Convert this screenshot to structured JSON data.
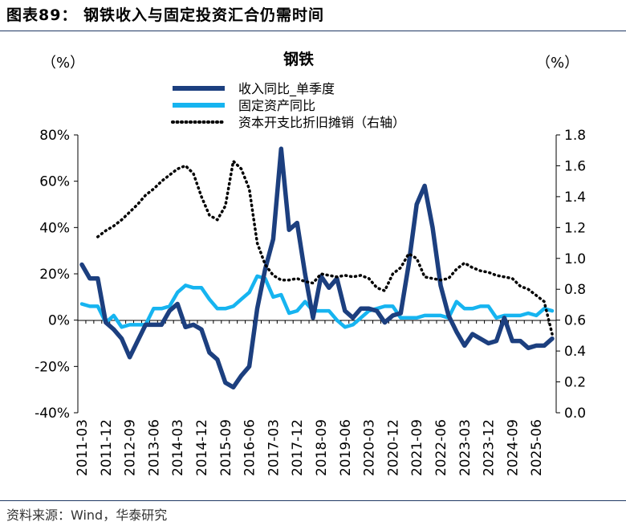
{
  "figure_title": "图表89： 钢铁收入与固定投资汇合仍需时间",
  "source": "资料来源：Wind，华泰研究",
  "colors": {
    "revenue": "#1c3f7f",
    "fixed_asset": "#16b4f0",
    "capex": "#000000",
    "rule": "#1f3864"
  },
  "chart_data": {
    "type": "line",
    "title": "钢铁",
    "y_left_unit": "（%）",
    "y_right_unit": "（%）",
    "y_left_ticks": [
      "80%",
      "60%",
      "40%",
      "20%",
      "0%",
      "-20%",
      "-40%"
    ],
    "y_left_range": [
      -40,
      80
    ],
    "y_right_ticks": [
      "1.8",
      "1.6",
      "1.4",
      "1.2",
      "1.0",
      "0.8",
      "0.6",
      "0.4",
      "0.2",
      "0.0"
    ],
    "y_right_range": [
      0,
      1.8
    ],
    "x_ticks": [
      "2011-03",
      "2011-12",
      "2012-09",
      "2013-06",
      "2014-03",
      "2014-12",
      "2015-09",
      "2016-06",
      "2017-03",
      "2017-12",
      "2018-09",
      "2019-06",
      "2020-03",
      "2020-12",
      "2021-09",
      "2022-06",
      "2023-03",
      "2023-12",
      "2024-09",
      "2025-06"
    ],
    "legend": [
      "收入同比_单季度",
      "固定资产同比",
      "资本开支比折旧摊销（右轴）"
    ],
    "series": [
      {
        "name": "收入同比_单季度",
        "axis": "left",
        "style": "solid",
        "start_index": 0,
        "values": [
          24,
          18,
          18,
          -1,
          -4,
          -8,
          -16,
          -9,
          -2,
          -2,
          -2,
          4,
          7,
          -3,
          -2,
          -4,
          -14,
          -17,
          -27,
          -29,
          -24,
          -20,
          5,
          22,
          35,
          74,
          39,
          42,
          20,
          1,
          19,
          14,
          18,
          4,
          1,
          5,
          5,
          4,
          -1,
          2,
          3,
          24,
          50,
          58,
          40,
          15,
          2,
          -5,
          -11,
          -6,
          -8,
          -10,
          -9,
          1,
          -9,
          -9,
          -12,
          -11,
          -11,
          -8
        ]
      },
      {
        "name": "固定资产同比",
        "axis": "left",
        "style": "solid",
        "start_index": 0,
        "values": [
          7,
          6,
          6,
          -1,
          2,
          -3,
          -2,
          -2,
          -2,
          5,
          5,
          6,
          12,
          15,
          14,
          14,
          9,
          5,
          5,
          6,
          9,
          12,
          19,
          18,
          10,
          11,
          3,
          4,
          8,
          4,
          4,
          4,
          0,
          -3,
          -2,
          1,
          4,
          5,
          6,
          6,
          1,
          1,
          1,
          2,
          2,
          2,
          1,
          8,
          5,
          5,
          6,
          6,
          1,
          2,
          2,
          2,
          3,
          2,
          5,
          4
        ]
      },
      {
        "name": "资本开支比折旧摊销（右轴）",
        "axis": "right",
        "style": "dotted",
        "start_index": 2,
        "values": [
          1.14,
          1.18,
          1.21,
          1.25,
          1.3,
          1.35,
          1.41,
          1.45,
          1.5,
          1.54,
          1.58,
          1.6,
          1.55,
          1.4,
          1.28,
          1.25,
          1.34,
          1.63,
          1.58,
          1.45,
          1.1,
          0.96,
          0.89,
          0.86,
          0.86,
          0.87,
          0.85,
          0.84,
          0.9,
          0.89,
          0.88,
          0.89,
          0.88,
          0.89,
          0.87,
          0.81,
          0.79,
          0.9,
          0.94,
          1.03,
          1.0,
          0.88,
          0.87,
          0.86,
          0.87,
          0.93,
          0.97,
          0.94,
          0.92,
          0.91,
          0.89,
          0.88,
          0.87,
          0.82,
          0.8,
          0.76,
          0.72,
          0.51
        ]
      }
    ]
  }
}
